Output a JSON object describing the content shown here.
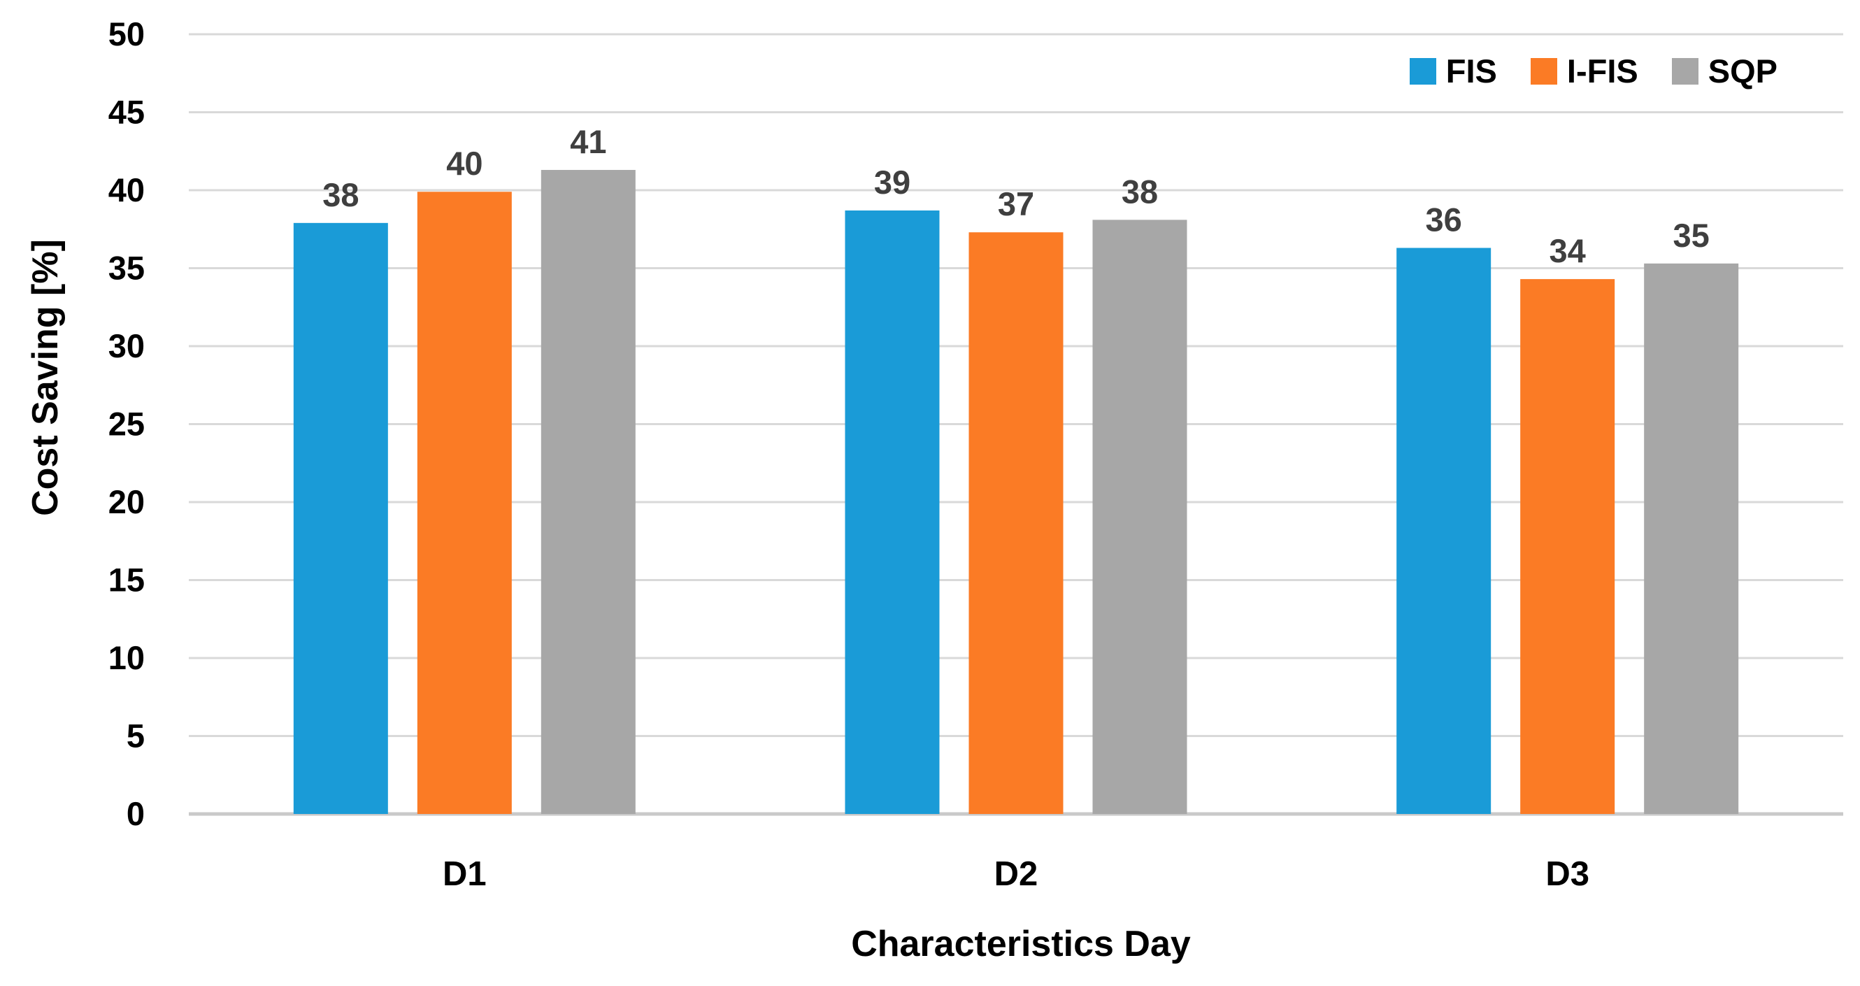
{
  "chart_data": {
    "type": "bar",
    "title": "",
    "xlabel": "Characteristics Day",
    "ylabel": "Cost Saving [%]",
    "categories": [
      "D1",
      "D2",
      "D3"
    ],
    "series": [
      {
        "name": "FIS",
        "color": "#1A9BD7",
        "values": [
          38,
          39,
          36
        ],
        "rendered_heights": [
          37.9,
          38.7,
          36.3
        ]
      },
      {
        "name": "I-FIS",
        "color": "#FB7B25",
        "values": [
          40,
          37,
          34
        ],
        "rendered_heights": [
          39.9,
          37.3,
          34.3
        ]
      },
      {
        "name": "SQP",
        "color": "#A7A7A7",
        "values": [
          41,
          38,
          35
        ],
        "rendered_heights": [
          41.3,
          38.1,
          35.3
        ]
      }
    ],
    "ylim": [
      0,
      50
    ],
    "yticks": [
      0,
      5,
      10,
      15,
      20,
      25,
      30,
      35,
      40,
      45,
      50
    ],
    "grid": true,
    "legend_position": "top-right",
    "colors": {
      "grid_line": "#D9D9D9",
      "axis_line": "#C9C9C9",
      "tick_text": "#000000",
      "category_text": "#000000",
      "data_label_text": "#3F3F3F",
      "background": "#FFFFFF"
    }
  }
}
